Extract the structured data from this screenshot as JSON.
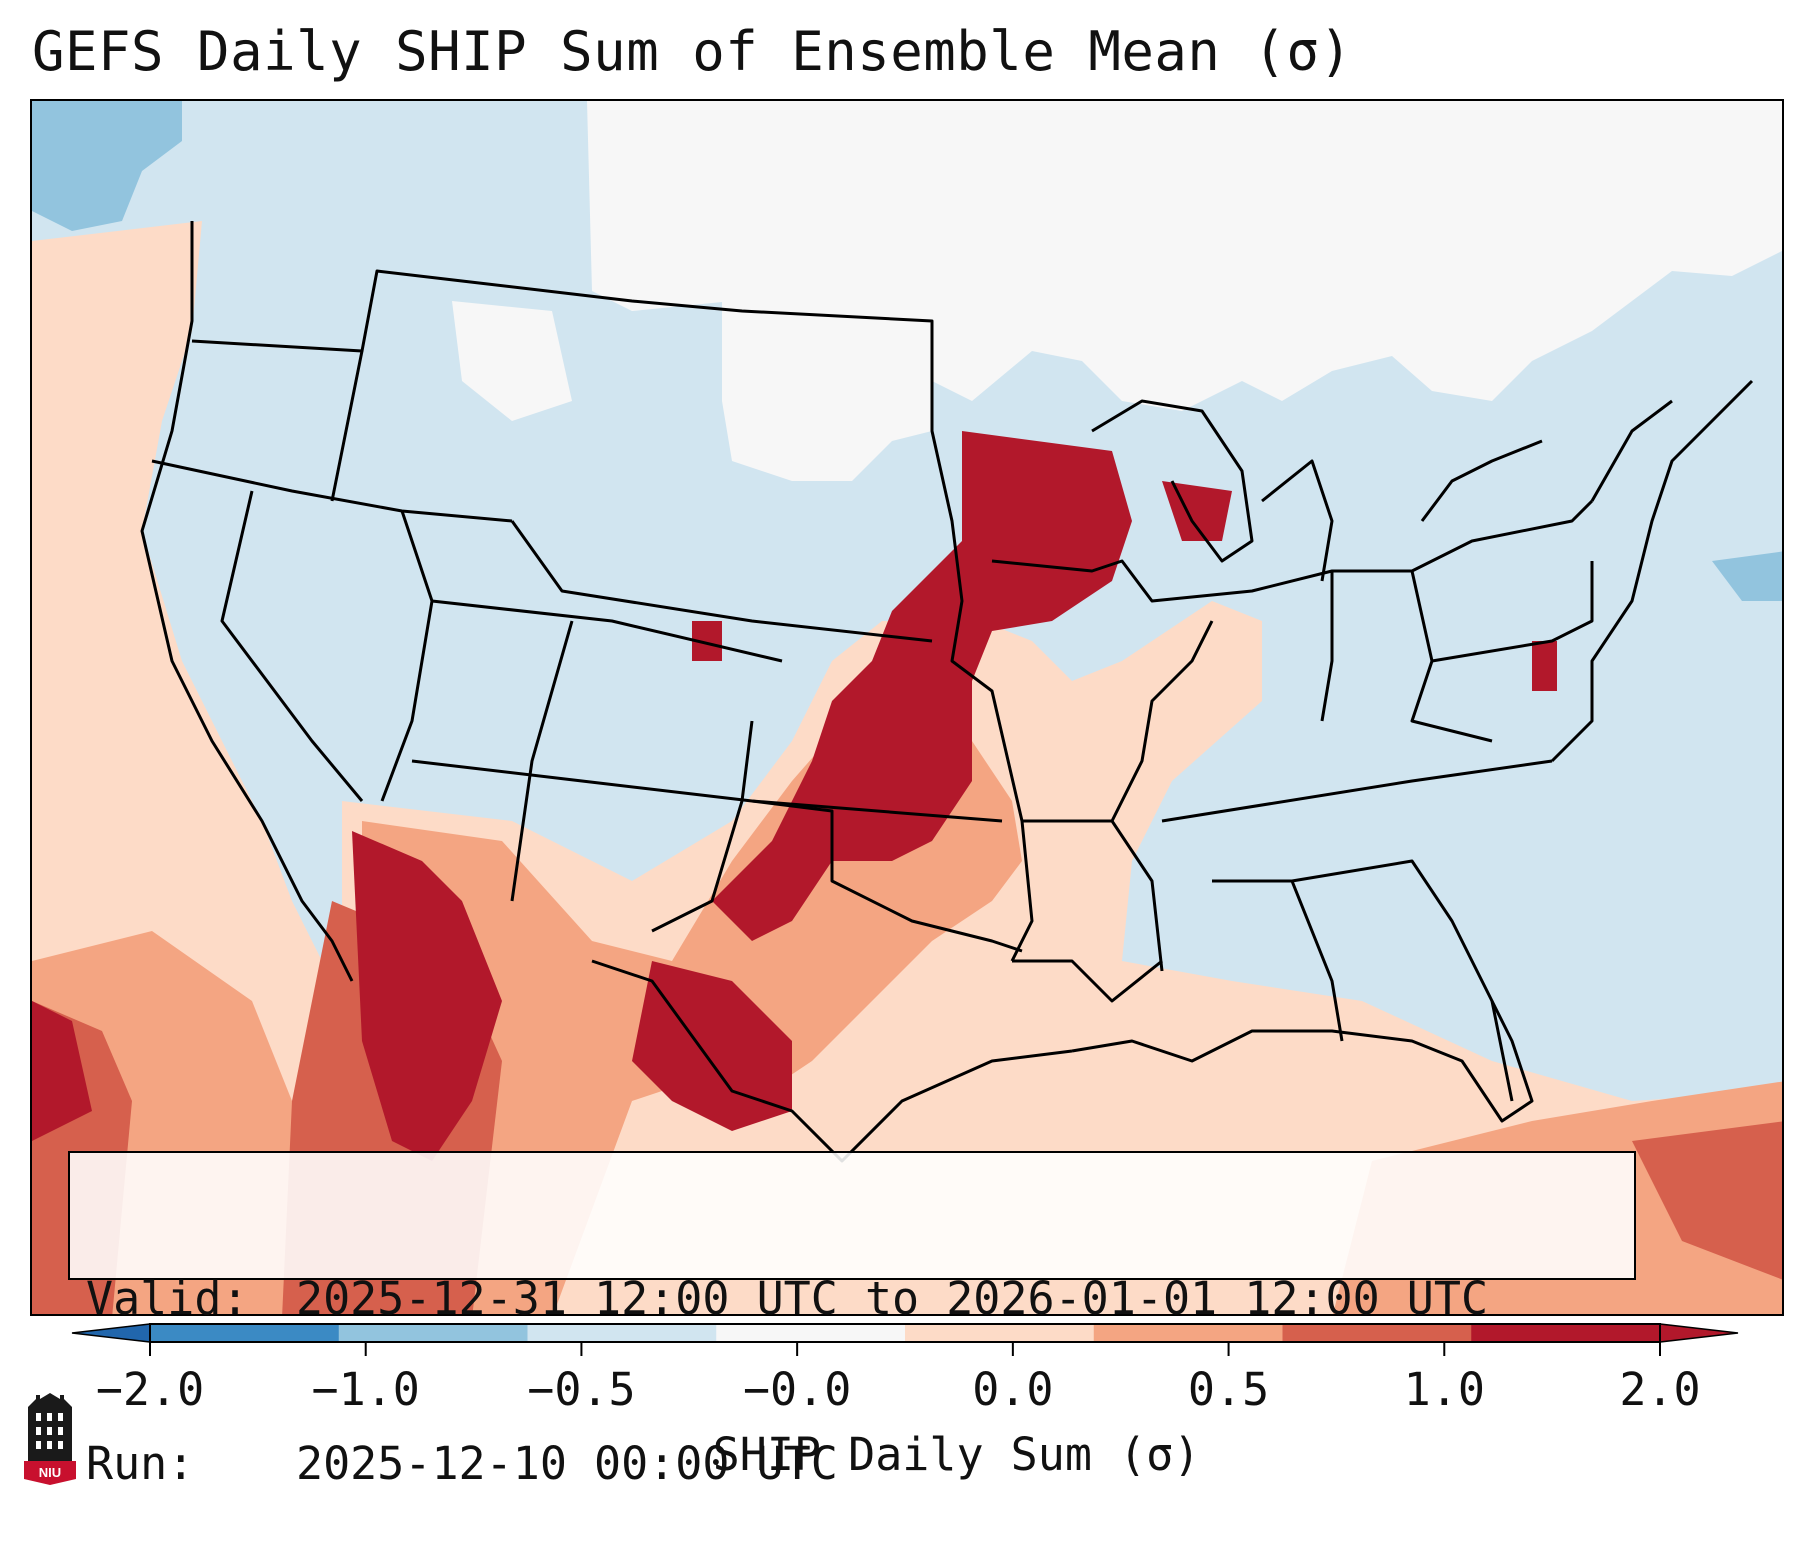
{
  "title": "GEFS Daily SHIP Sum of Ensemble Mean (σ)",
  "info": {
    "valid_label": "Valid:",
    "valid_value": "2025-12-31 12:00 UTC to 2026-01-01 12:00 UTC",
    "run_label": "Run:",
    "run_value": "2025-12-10 00:00 UTC"
  },
  "colorbar": {
    "label": "SHIP Daily Sum (σ)",
    "ticks": [
      "−2.0",
      "−1.0",
      "−0.5",
      "−0.0",
      "0.0",
      "0.5",
      "1.0",
      "2.0"
    ],
    "bin_colors": [
      "#3b8ac4",
      "#92c4de",
      "#d1e5f0",
      "#f7f7f7",
      "#fddbc7",
      "#f4a582",
      "#d6604d",
      "#b2182b"
    ],
    "extend_low_color": "#2166ac",
    "extend_high_color": "#b2182b"
  },
  "logo_text": "NIU",
  "map": {
    "region": "Contiguous United States",
    "variable": "SHIP daily sum anomaly (σ)",
    "palette": {
      "ocean": "#d1e5f0",
      "land_neutral": "#d1e5f0",
      "near_zero": "#f7f7f7",
      "weak_pos": "#fddbc7",
      "mod_pos": "#f4a582",
      "strong_pos": "#d6604d",
      "max_pos": "#b2182b",
      "mod_neg": "#92c4de",
      "strong_neg": "#3b8ac4"
    }
  }
}
